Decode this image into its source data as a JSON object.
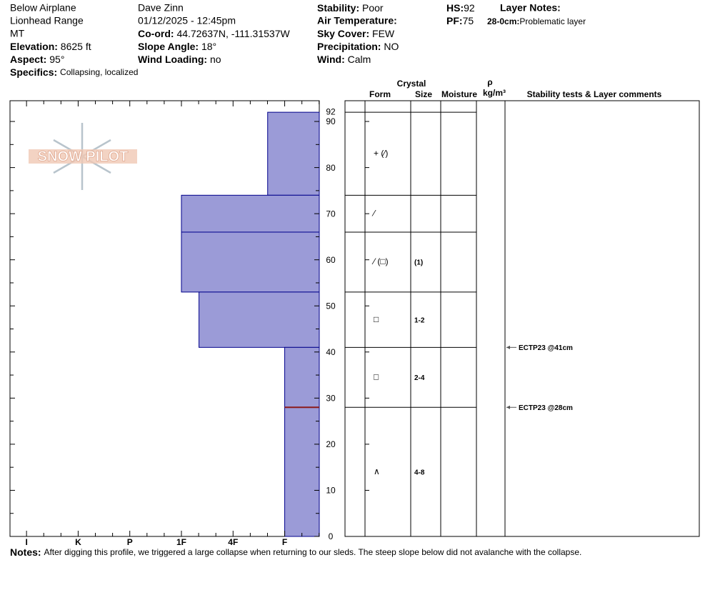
{
  "header": {
    "location": "Below Airplane",
    "range": "Lionhead Range",
    "state": "MT",
    "elevation_label": "Elevation:",
    "elevation": "8625 ft",
    "aspect_label": "Aspect:",
    "aspect": "95°",
    "specifics_label": "Specifics:",
    "specifics": "Collapsing, localized",
    "observer": "Dave Zinn",
    "datetime": "01/12/2025 - 12:45pm",
    "coord_label": "Co-ord:",
    "coord": "44.72637N, -111.31537W",
    "slope_label": "Slope Angle:",
    "slope": "18°",
    "wind_loading_label": "Wind Loading:",
    "wind_loading": "no",
    "stability_label": "Stability:",
    "stability": "Poor",
    "air_temp_label": "Air Temperature:",
    "sky_label": "Sky Cover:",
    "sky": "FEW",
    "precip_label": "Precipitation:",
    "precip": "NO",
    "wind_label": "Wind:",
    "wind": "Calm",
    "hs_label": "HS:",
    "hs": 92,
    "pf_label": "PF:",
    "pf": 75,
    "layer_notes_label": "Layer Notes:",
    "layer_note_range": "28-0cm:",
    "layer_note": "Problematic layer"
  },
  "logo": "SNOW PILOT",
  "table_header": {
    "crystal": "Crystal",
    "form": "Form",
    "size": "Size",
    "moisture": "Moisture",
    "rho": "ρ",
    "density_unit": "kg/m³",
    "comments": "Stability tests & Layer comments"
  },
  "notes_label": "Notes:",
  "notes": "After digging this profile, we triggered a large collapse when returning to our sleds. The steep slope below did not avalanche with the collapse.",
  "chart_data": {
    "type": "snow-profile",
    "color": "#9b9bd7",
    "edge_color": "#00008b",
    "ylim": [
      0,
      94.5
    ],
    "yticks": [
      0,
      10,
      20,
      30,
      40,
      50,
      60,
      70,
      80,
      90
    ],
    "xlim": [
      6.32,
      0.33
    ],
    "xticks": [
      {
        "value": 6,
        "label": "I"
      },
      {
        "value": 5,
        "label": "K"
      },
      {
        "value": 4,
        "label": "P"
      },
      {
        "value": 3,
        "label": "1F"
      },
      {
        "value": 2,
        "label": "4F"
      },
      {
        "value": 1,
        "label": "F"
      }
    ],
    "layers": [
      {
        "top": 92,
        "bottom": 74,
        "hardness": 1.33,
        "form": "+ (⁄)"
      },
      {
        "top": 74,
        "bottom": 66,
        "hardness": 3,
        "form": "⁄"
      },
      {
        "top": 66,
        "bottom": 53,
        "hardness": 3,
        "form": "⁄ (□)",
        "size": "(1)"
      },
      {
        "top": 53,
        "bottom": 41,
        "hardness": 2.66,
        "form": "□",
        "size": "1-2"
      },
      {
        "top": 41,
        "bottom": 28,
        "hardness": 1,
        "form": "□",
        "size": "2-4"
      },
      {
        "top": 28,
        "bottom": 0,
        "hardness": 1,
        "form": "∧",
        "size": "4-8"
      }
    ],
    "marker_line": {
      "height": 28,
      "color": "#8b1a1a"
    },
    "tests": [
      {
        "height": 41,
        "label": "ECTP23 @41cm"
      },
      {
        "height": 28,
        "label": "ECTP23 @28cm"
      }
    ]
  }
}
